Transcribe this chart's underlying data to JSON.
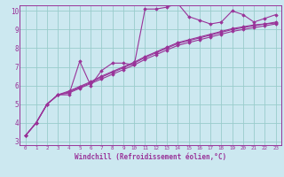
{
  "xlabel": "Windchill (Refroidissement éolien,°C)",
  "background_color": "#cce8f0",
  "grid_color": "#99cccc",
  "line_color": "#993399",
  "xlim": [
    -0.5,
    23.5
  ],
  "ylim": [
    2.8,
    10.3
  ],
  "xticks": [
    0,
    1,
    2,
    3,
    4,
    5,
    6,
    7,
    8,
    9,
    10,
    11,
    12,
    13,
    14,
    15,
    16,
    17,
    18,
    19,
    20,
    21,
    22,
    23
  ],
  "yticks": [
    3,
    4,
    5,
    6,
    7,
    8,
    9,
    10
  ],
  "series": [
    [
      3.3,
      4.0,
      5.0,
      5.5,
      5.5,
      7.3,
      6.0,
      6.8,
      7.2,
      7.2,
      7.1,
      10.1,
      10.1,
      10.2,
      10.4,
      9.7,
      9.5,
      9.3,
      9.4,
      10.0,
      9.8,
      9.4,
      9.6,
      9.8
    ],
    [
      3.3,
      4.0,
      5.0,
      5.5,
      5.6,
      5.85,
      6.1,
      6.35,
      6.6,
      6.85,
      7.1,
      7.4,
      7.65,
      7.9,
      8.15,
      8.3,
      8.45,
      8.6,
      8.75,
      8.9,
      9.0,
      9.1,
      9.2,
      9.3
    ],
    [
      3.3,
      4.0,
      5.0,
      5.5,
      5.65,
      5.9,
      6.15,
      6.45,
      6.7,
      6.95,
      7.2,
      7.5,
      7.75,
      8.0,
      8.25,
      8.4,
      8.55,
      8.7,
      8.85,
      9.0,
      9.1,
      9.2,
      9.3,
      9.35
    ],
    [
      3.3,
      4.0,
      5.0,
      5.5,
      5.7,
      5.95,
      6.2,
      6.5,
      6.75,
      7.0,
      7.25,
      7.55,
      7.8,
      8.05,
      8.3,
      8.45,
      8.6,
      8.75,
      8.9,
      9.05,
      9.15,
      9.25,
      9.3,
      9.4
    ]
  ]
}
